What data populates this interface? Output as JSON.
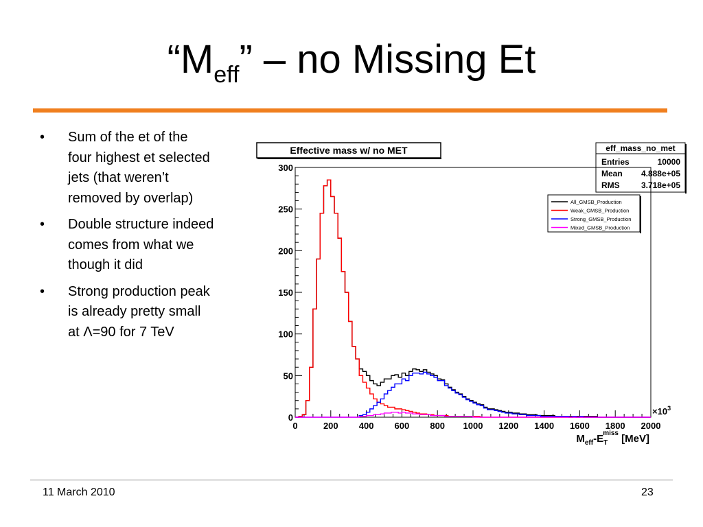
{
  "slide": {
    "title": {
      "pre": "“M",
      "sub": "eff",
      "post": "” – no Missing Et"
    },
    "bullets": [
      {
        "lines": [
          "Sum of the et of the",
          "four highest et selected",
          "jets (that weren’t",
          "removed by overlap)"
        ]
      },
      {
        "lines": [
          "Double structure indeed",
          "comes from what we",
          "though it did"
        ]
      },
      {
        "lines": [
          "Strong production peak",
          "is already pretty small",
          "at Λ=90 for 7 TeV"
        ]
      }
    ],
    "bullet_char": "•",
    "footer": {
      "date": "11 March 2010",
      "page": "23"
    },
    "accent_color": "#f07f1e"
  },
  "chart_data": {
    "type": "line",
    "title": "Effective mass w/ no MET",
    "xlabel": {
      "main": "M",
      "sub1": "eff",
      "dash": "-E",
      "sub2": "T",
      "sup": "miss",
      "unit": " [MeV]"
    },
    "x_multiplier": "×10",
    "x_multiplier_exp": "3",
    "xlim": [
      0,
      2000
    ],
    "ylim": [
      0,
      300
    ],
    "xticks": [
      0,
      200,
      400,
      600,
      800,
      1000,
      1200,
      1400,
      1600,
      1800,
      2000
    ],
    "yticks": [
      0,
      50,
      100,
      150,
      200,
      250,
      300
    ],
    "stats_box": {
      "name": "eff_mass_no_met",
      "rows": [
        {
          "label": "Entries",
          "value": "10000"
        },
        {
          "label": "Mean",
          "value": "4.888e+05"
        },
        {
          "label": "RMS",
          "value": "3.718e+05"
        }
      ]
    },
    "legend_position": "top-right",
    "x": [
      0,
      20,
      40,
      60,
      80,
      100,
      120,
      140,
      160,
      180,
      200,
      220,
      240,
      260,
      280,
      300,
      320,
      340,
      360,
      380,
      400,
      420,
      440,
      460,
      480,
      500,
      520,
      540,
      560,
      580,
      600,
      620,
      640,
      660,
      680,
      700,
      720,
      740,
      760,
      780,
      800,
      820,
      840,
      860,
      880,
      900,
      920,
      940,
      960,
      980,
      1000,
      1020,
      1040,
      1060,
      1080,
      1100,
      1120,
      1140,
      1160,
      1180,
      1200,
      1220,
      1240,
      1260,
      1280,
      1300,
      1320,
      1340,
      1360,
      1380,
      1400,
      1420,
      1440,
      1460,
      1480,
      1500,
      1520,
      1540,
      1560,
      1580,
      1600,
      1620,
      1640,
      1660,
      1680,
      1700,
      1720,
      1740,
      1760,
      1780,
      1800,
      1820,
      1840,
      1860,
      1880,
      1900,
      1920,
      1940,
      1960,
      1980
    ],
    "series": [
      {
        "name": "All_GMSB_Production",
        "color": "#000000",
        "values": [
          0,
          1,
          3,
          20,
          60,
          130,
          190,
          245,
          278,
          285,
          265,
          245,
          215,
          175,
          150,
          115,
          85,
          70,
          58,
          55,
          50,
          44,
          40,
          38,
          42,
          46,
          46,
          50,
          51,
          48,
          53,
          50,
          55,
          58,
          57,
          55,
          57,
          54,
          52,
          50,
          46,
          45,
          40,
          36,
          33,
          30,
          28,
          25,
          22,
          20,
          18,
          16,
          15,
          12,
          10,
          10,
          9,
          8,
          7,
          6,
          6,
          5,
          5,
          4,
          4,
          3,
          3,
          3,
          2,
          2,
          2,
          2,
          2,
          1,
          1,
          1,
          1,
          1,
          1,
          1,
          1,
          1,
          1,
          1,
          1,
          0,
          0,
          0,
          0,
          0,
          0,
          0,
          0,
          0,
          0,
          0,
          0,
          0,
          0,
          0
        ]
      },
      {
        "name": "Weak_GMSB_Production",
        "color": "#ff0000",
        "values": [
          0,
          1,
          3,
          20,
          60,
          130,
          190,
          245,
          278,
          285,
          265,
          245,
          215,
          175,
          150,
          115,
          85,
          70,
          50,
          42,
          35,
          28,
          22,
          18,
          16,
          14,
          12,
          12,
          10,
          10,
          9,
          8,
          7,
          6,
          5,
          4,
          4,
          3,
          3,
          2,
          2,
          2,
          2,
          1,
          1,
          1,
          1,
          1,
          1,
          1,
          1,
          1,
          0,
          0,
          0,
          0,
          0,
          0,
          0,
          0,
          0,
          0,
          0,
          0,
          0,
          0,
          0,
          0,
          0,
          0,
          0,
          0,
          0,
          0,
          0,
          0,
          0,
          0,
          0,
          0,
          0,
          0,
          0,
          0,
          0,
          0,
          0,
          0,
          0,
          0,
          0,
          0,
          0,
          0,
          0,
          0,
          0,
          0,
          0,
          0
        ]
      },
      {
        "name": "Strong_GMSB_Production",
        "color": "#0000ff",
        "values": [
          0,
          0,
          0,
          0,
          0,
          0,
          0,
          0,
          0,
          0,
          0,
          0,
          0,
          0,
          0,
          0,
          0,
          0,
          2,
          3,
          6,
          10,
          14,
          18,
          22,
          28,
          32,
          36,
          40,
          40,
          46,
          44,
          50,
          53,
          53,
          52,
          54,
          52,
          50,
          48,
          44,
          44,
          38,
          35,
          32,
          29,
          27,
          24,
          21,
          19,
          17,
          15,
          14,
          11,
          9,
          9,
          8,
          7,
          6,
          5,
          5,
          4,
          4,
          3,
          3,
          2,
          2,
          2,
          2,
          1,
          1,
          1,
          1,
          1,
          1,
          1,
          1,
          0,
          1,
          0,
          1,
          0,
          0,
          0,
          0,
          0,
          0,
          0,
          0,
          0,
          0,
          0,
          0,
          0,
          0,
          0,
          0,
          0,
          0,
          0
        ]
      },
      {
        "name": "Mixed_GMSB_Production",
        "color": "#ff00ff",
        "values": [
          0,
          0,
          0,
          0,
          0,
          0,
          0,
          0,
          0,
          0,
          0,
          0,
          0,
          0,
          0,
          0,
          0,
          0,
          1,
          1,
          2,
          2,
          3,
          3,
          4,
          5,
          5,
          6,
          6,
          5,
          6,
          5,
          5,
          4,
          4,
          3,
          3,
          3,
          2,
          2,
          2,
          2,
          1,
          1,
          1,
          1,
          1,
          1,
          1,
          1,
          0,
          0,
          0,
          0,
          0,
          0,
          0,
          0,
          0,
          0,
          0,
          0,
          0,
          0,
          0,
          0,
          0,
          0,
          0,
          0,
          0,
          0,
          0,
          0,
          0,
          0,
          0,
          0,
          0,
          0,
          0,
          0,
          0,
          0,
          0,
          0,
          0,
          0,
          0,
          0,
          0,
          0,
          0,
          0,
          0,
          0,
          0,
          0,
          0,
          0
        ]
      }
    ]
  }
}
